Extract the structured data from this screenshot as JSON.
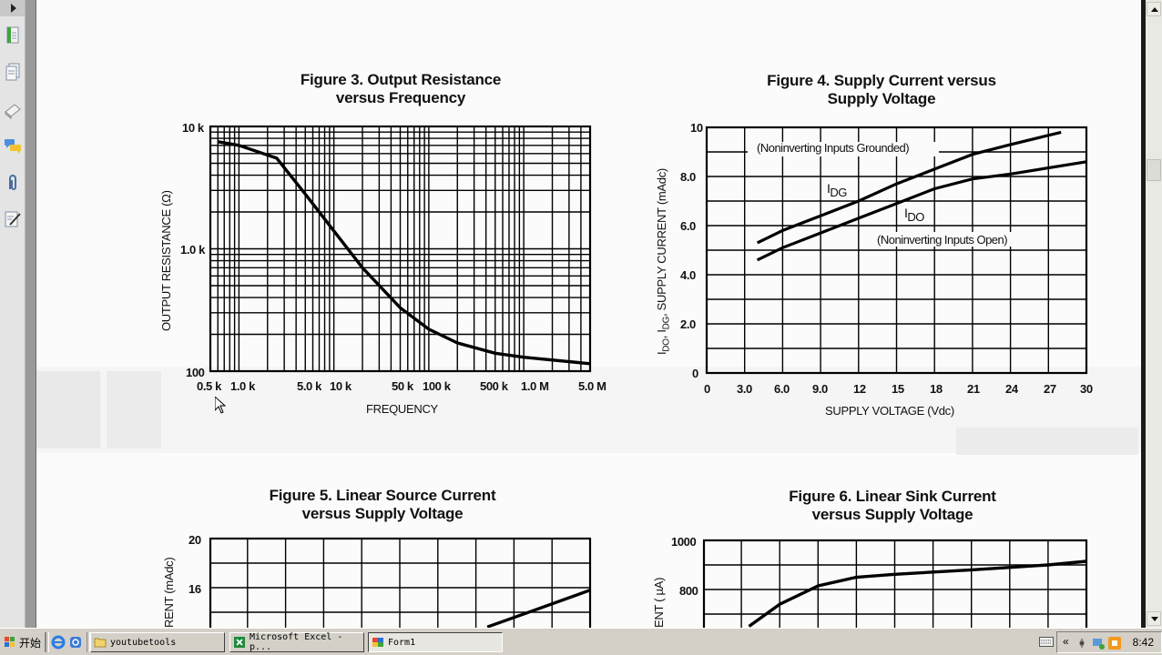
{
  "viewer": {
    "nav_pane": {
      "toggle_icon": "triangle-right",
      "icons": [
        "page-thumbnails-icon",
        "pages-icon",
        "layers-eraser-icon",
        "comments-icon",
        "attachments-paperclip-icon",
        "signatures-pen-icon"
      ]
    },
    "scrollbar": {
      "up": "scroll-up-arrow",
      "down": "scroll-down-arrow"
    }
  },
  "figures": {
    "fig3": {
      "title_line1": "Figure 3. Output Resistance",
      "title_line2": "versus Frequency",
      "xlabel": "FREQUENCY",
      "ylabel": "OUTPUT RESISTANCE (Ω)",
      "yticks": [
        "10 k",
        "1.0 k",
        "100"
      ],
      "xticks": [
        "0.5 k",
        "1.0 k",
        "5.0 k",
        "10 k",
        "50 k",
        "100 k",
        "500 k",
        "1.0 M",
        "5.0 M"
      ]
    },
    "fig4": {
      "title_line1": "Figure 4. Supply Current versus",
      "title_line2": "Supply Voltage",
      "xlabel": "SUPPLY VOLTAGE (Vdc)",
      "ylabel_prefix": "I",
      "ylabel_sub1": "DO",
      "ylabel_mid": ", I",
      "ylabel_sub2": "DG",
      "ylabel_rest": ", SUPPLY CURRENT (mAdc)",
      "yticks": [
        "10",
        "8.0",
        "6.0",
        "4.0",
        "2.0",
        "0"
      ],
      "xticks": [
        "0",
        "3.0",
        "6.0",
        "9.0",
        "12",
        "15",
        "18",
        "21",
        "24",
        "27",
        "30"
      ],
      "ann_grounded": "(Noninverting Inputs Grounded)",
      "ann_open": "(Noninverting Inputs Open)",
      "label_idg_main": "I",
      "label_idg_sub": "DG",
      "label_ido_main": "I",
      "label_ido_sub": "DO"
    },
    "fig5": {
      "title_line1": "Figure 5. Linear Source Current",
      "title_line2": "versus Supply Voltage",
      "ylabel_partial": "RENT (mAdc)",
      "yticks": [
        "20",
        "16"
      ]
    },
    "fig6": {
      "title_line1": "Figure 6. Linear Sink Current",
      "title_line2": "versus Supply Voltage",
      "ylabel_partial": "ENT ( µA)",
      "yticks": [
        "1000",
        "800"
      ]
    }
  },
  "taskbar": {
    "start_label": "开始",
    "quicklaunch": [
      "internet-explorer-icon",
      "outlook-express-icon"
    ],
    "buttons": [
      {
        "label": "youtubetools",
        "icon": "folder-icon",
        "active": false
      },
      {
        "label": "Microsoft Excel - p...",
        "icon": "excel-icon",
        "active": false
      },
      {
        "label": "Form1",
        "icon": "form-window-icon",
        "active": true
      }
    ],
    "tray": {
      "expand": "«",
      "clock": "8:42"
    }
  },
  "chart_data": [
    {
      "type": "line",
      "title": "Figure 3. Output Resistance versus Frequency",
      "xlabel": "FREQUENCY",
      "ylabel": "OUTPUT RESISTANCE (Ω)",
      "xscale": "log",
      "yscale": "log",
      "xlim": [
        500,
        5000000
      ],
      "ylim": [
        100,
        10000
      ],
      "grid": true,
      "x_tick_labels": [
        "0.5 k",
        "1.0 k",
        "5.0 k",
        "10 k",
        "50 k",
        "100 k",
        "500 k",
        "1.0 M",
        "5.0 M"
      ],
      "y_tick_labels": [
        "100",
        "1.0 k",
        "10 k"
      ],
      "series": [
        {
          "name": "Output Resistance",
          "x": [
            600,
            1000,
            2500,
            5000,
            10000,
            20000,
            50000,
            100000,
            200000,
            500000,
            1000000,
            5000000
          ],
          "y": [
            7500,
            7000,
            5500,
            2800,
            1400,
            700,
            330,
            220,
            170,
            140,
            130,
            115
          ]
        }
      ]
    },
    {
      "type": "line",
      "title": "Figure 4. Supply Current versus Supply Voltage",
      "xlabel": "SUPPLY VOLTAGE (Vdc)",
      "ylabel": "IDO, IDG, SUPPLY CURRENT (mAdc)",
      "xlim": [
        0,
        30
      ],
      "ylim": [
        0,
        10
      ],
      "grid": true,
      "x_ticks": [
        0,
        3,
        6,
        9,
        12,
        15,
        18,
        21,
        24,
        27,
        30
      ],
      "y_ticks": [
        0,
        2,
        4,
        6,
        8,
        10
      ],
      "annotations": [
        "(Noninverting Inputs Grounded)",
        "(Noninverting Inputs Open)"
      ],
      "series": [
        {
          "name": "IDG (Noninverting Inputs Grounded)",
          "x": [
            4,
            6,
            9,
            12,
            15,
            18,
            21,
            24,
            28
          ],
          "y": [
            5.3,
            5.8,
            6.4,
            7.0,
            7.7,
            8.3,
            8.9,
            9.3,
            9.8
          ]
        },
        {
          "name": "IDO (Noninverting Inputs Open)",
          "x": [
            4,
            6,
            9,
            12,
            15,
            18,
            21,
            24,
            30
          ],
          "y": [
            4.6,
            5.1,
            5.7,
            6.3,
            6.9,
            7.5,
            7.9,
            8.1,
            8.6
          ]
        }
      ]
    },
    {
      "type": "line",
      "title": "Figure 5. Linear Source Current versus Supply Voltage",
      "ylabel": "CURRENT (mAdc)",
      "ylim_visible": [
        null,
        20
      ],
      "y_tick_labels_visible": [
        "20",
        "16"
      ],
      "grid": true,
      "partial": true,
      "series": [
        {
          "name": "Source Current (visible portion)",
          "x_frac": [
            0.73,
            0.83,
            1.0
          ],
          "y": [
            12.8,
            13.9,
            15.8
          ]
        }
      ]
    },
    {
      "type": "line",
      "title": "Figure 6. Linear Sink Current versus Supply Voltage",
      "ylabel": "CURRENT (µA)",
      "ylim_visible": [
        null,
        1000
      ],
      "y_tick_labels_visible": [
        "1000",
        "800"
      ],
      "grid": true,
      "partial": true,
      "series": [
        {
          "name": "Sink Current (visible portion)",
          "x_frac": [
            0.12,
            0.2,
            0.3,
            0.4,
            0.5,
            0.7,
            0.9,
            1.0
          ],
          "y": [
            650,
            740,
            815,
            850,
            862,
            880,
            900,
            915
          ]
        }
      ]
    }
  ]
}
